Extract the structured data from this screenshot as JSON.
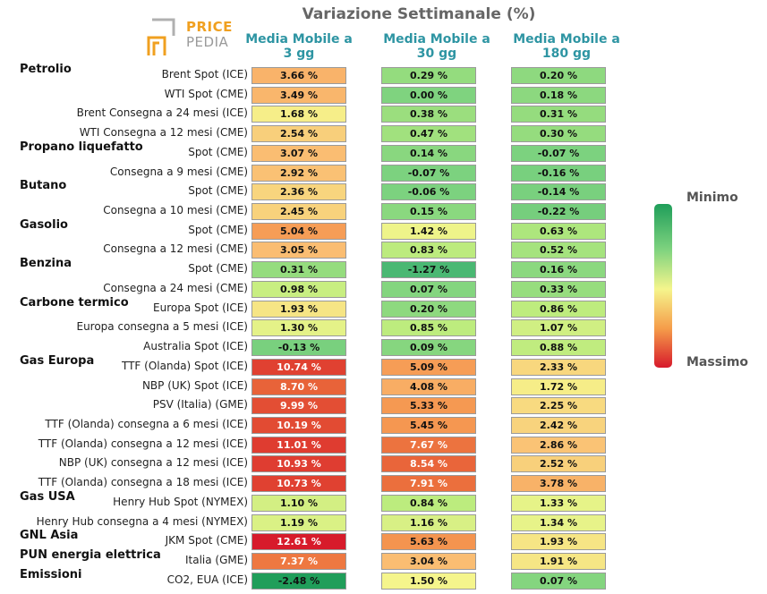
{
  "chart_data": {
    "type": "table",
    "title": "Variazione Settimanale (%)",
    "columns": [
      "Media Mobile a\n3 gg",
      "Media Mobile a\n30 gg",
      "Media Mobile a\n180 gg"
    ],
    "groups": [
      {
        "name": "Petrolio",
        "rows": [
          {
            "label": "Brent Spot (ICE)",
            "values": [
              3.66,
              0.29,
              0.2
            ]
          },
          {
            "label": "WTI Spot (CME)",
            "values": [
              3.49,
              0.0,
              0.18
            ]
          },
          {
            "label": "Brent Consegna a 24 mesi (ICE)",
            "values": [
              1.68,
              0.38,
              0.31
            ]
          },
          {
            "label": "WTI Consegna a 12 mesi (CME)",
            "values": [
              2.54,
              0.47,
              0.3
            ]
          }
        ]
      },
      {
        "name": "Propano liquefatto",
        "rows": [
          {
            "label": "Spot (CME)",
            "values": [
              3.07,
              0.14,
              -0.07
            ]
          },
          {
            "label": "Consegna a 9 mesi (CME)",
            "values": [
              2.92,
              -0.07,
              -0.16
            ]
          }
        ]
      },
      {
        "name": "Butano",
        "rows": [
          {
            "label": "Spot (CME)",
            "values": [
              2.36,
              -0.06,
              -0.14
            ]
          },
          {
            "label": "Consegna a 10 mesi (CME)",
            "values": [
              2.45,
              0.15,
              -0.22
            ]
          }
        ]
      },
      {
        "name": "Gasolio",
        "rows": [
          {
            "label": "Spot (CME)",
            "values": [
              5.04,
              1.42,
              0.63
            ]
          },
          {
            "label": "Consegna a 12 mesi (CME)",
            "values": [
              3.05,
              0.83,
              0.52
            ]
          }
        ]
      },
      {
        "name": "Benzina",
        "rows": [
          {
            "label": "Spot (CME)",
            "values": [
              0.31,
              -1.27,
              0.16
            ]
          },
          {
            "label": "Consegna a 24 mesi (CME)",
            "values": [
              0.98,
              0.07,
              0.33
            ]
          }
        ]
      },
      {
        "name": "Carbone termico",
        "rows": [
          {
            "label": "Europa Spot (ICE)",
            "values": [
              1.93,
              0.2,
              0.86
            ]
          },
          {
            "label": "Europa consegna a 5 mesi (ICE)",
            "values": [
              1.3,
              0.85,
              1.07
            ]
          },
          {
            "label": "Australia Spot (ICE)",
            "values": [
              -0.13,
              0.09,
              0.88
            ]
          }
        ]
      },
      {
        "name": "Gas Europa",
        "rows": [
          {
            "label": "TTF (Olanda) Spot (ICE)",
            "values": [
              10.74,
              5.09,
              2.33
            ]
          },
          {
            "label": "NBP (UK) Spot (ICE)",
            "values": [
              8.7,
              4.08,
              1.72
            ]
          },
          {
            "label": "PSV (Italia) (GME)",
            "values": [
              9.99,
              5.33,
              2.25
            ]
          },
          {
            "label": "TTF (Olanda) consegna a 6 mesi (ICE)",
            "values": [
              10.19,
              5.45,
              2.42
            ]
          },
          {
            "label": "TTF (Olanda) consegna a 12 mesi (ICE)",
            "values": [
              11.01,
              7.67,
              2.86
            ]
          },
          {
            "label": "NBP (UK) consegna a 12 mesi (ICE)",
            "values": [
              10.93,
              8.54,
              2.52
            ]
          },
          {
            "label": "TTF (Olanda) consegna a 18 mesi (ICE)",
            "values": [
              10.73,
              7.91,
              3.78
            ]
          }
        ]
      },
      {
        "name": "Gas USA",
        "rows": [
          {
            "label": "Henry Hub Spot (NYMEX)",
            "values": [
              1.1,
              0.84,
              1.33
            ]
          },
          {
            "label": "Henry Hub consegna a 4 mesi (NYMEX)",
            "values": [
              1.19,
              1.16,
              1.34
            ]
          }
        ]
      },
      {
        "name": "GNL Asia",
        "rows": [
          {
            "label": "JKM Spot (CME)",
            "values": [
              12.61,
              5.63,
              1.93
            ]
          }
        ]
      },
      {
        "name": "PUN energia elettrica",
        "rows": [
          {
            "label": "Italia (GME)",
            "values": [
              7.37,
              3.04,
              1.91
            ]
          }
        ]
      },
      {
        "name": "Emissioni",
        "rows": [
          {
            "label": "CO2, EUA (ICE)",
            "values": [
              -2.48,
              1.5,
              0.07
            ]
          }
        ]
      }
    ],
    "color_scale": {
      "min_label": "Minimo",
      "max_label": "Massimo",
      "min_color": "#1f9e5a",
      "max_color": "#d7192b"
    }
  },
  "logo": {
    "line1": "PRICE",
    "line2": "PEDIA"
  }
}
